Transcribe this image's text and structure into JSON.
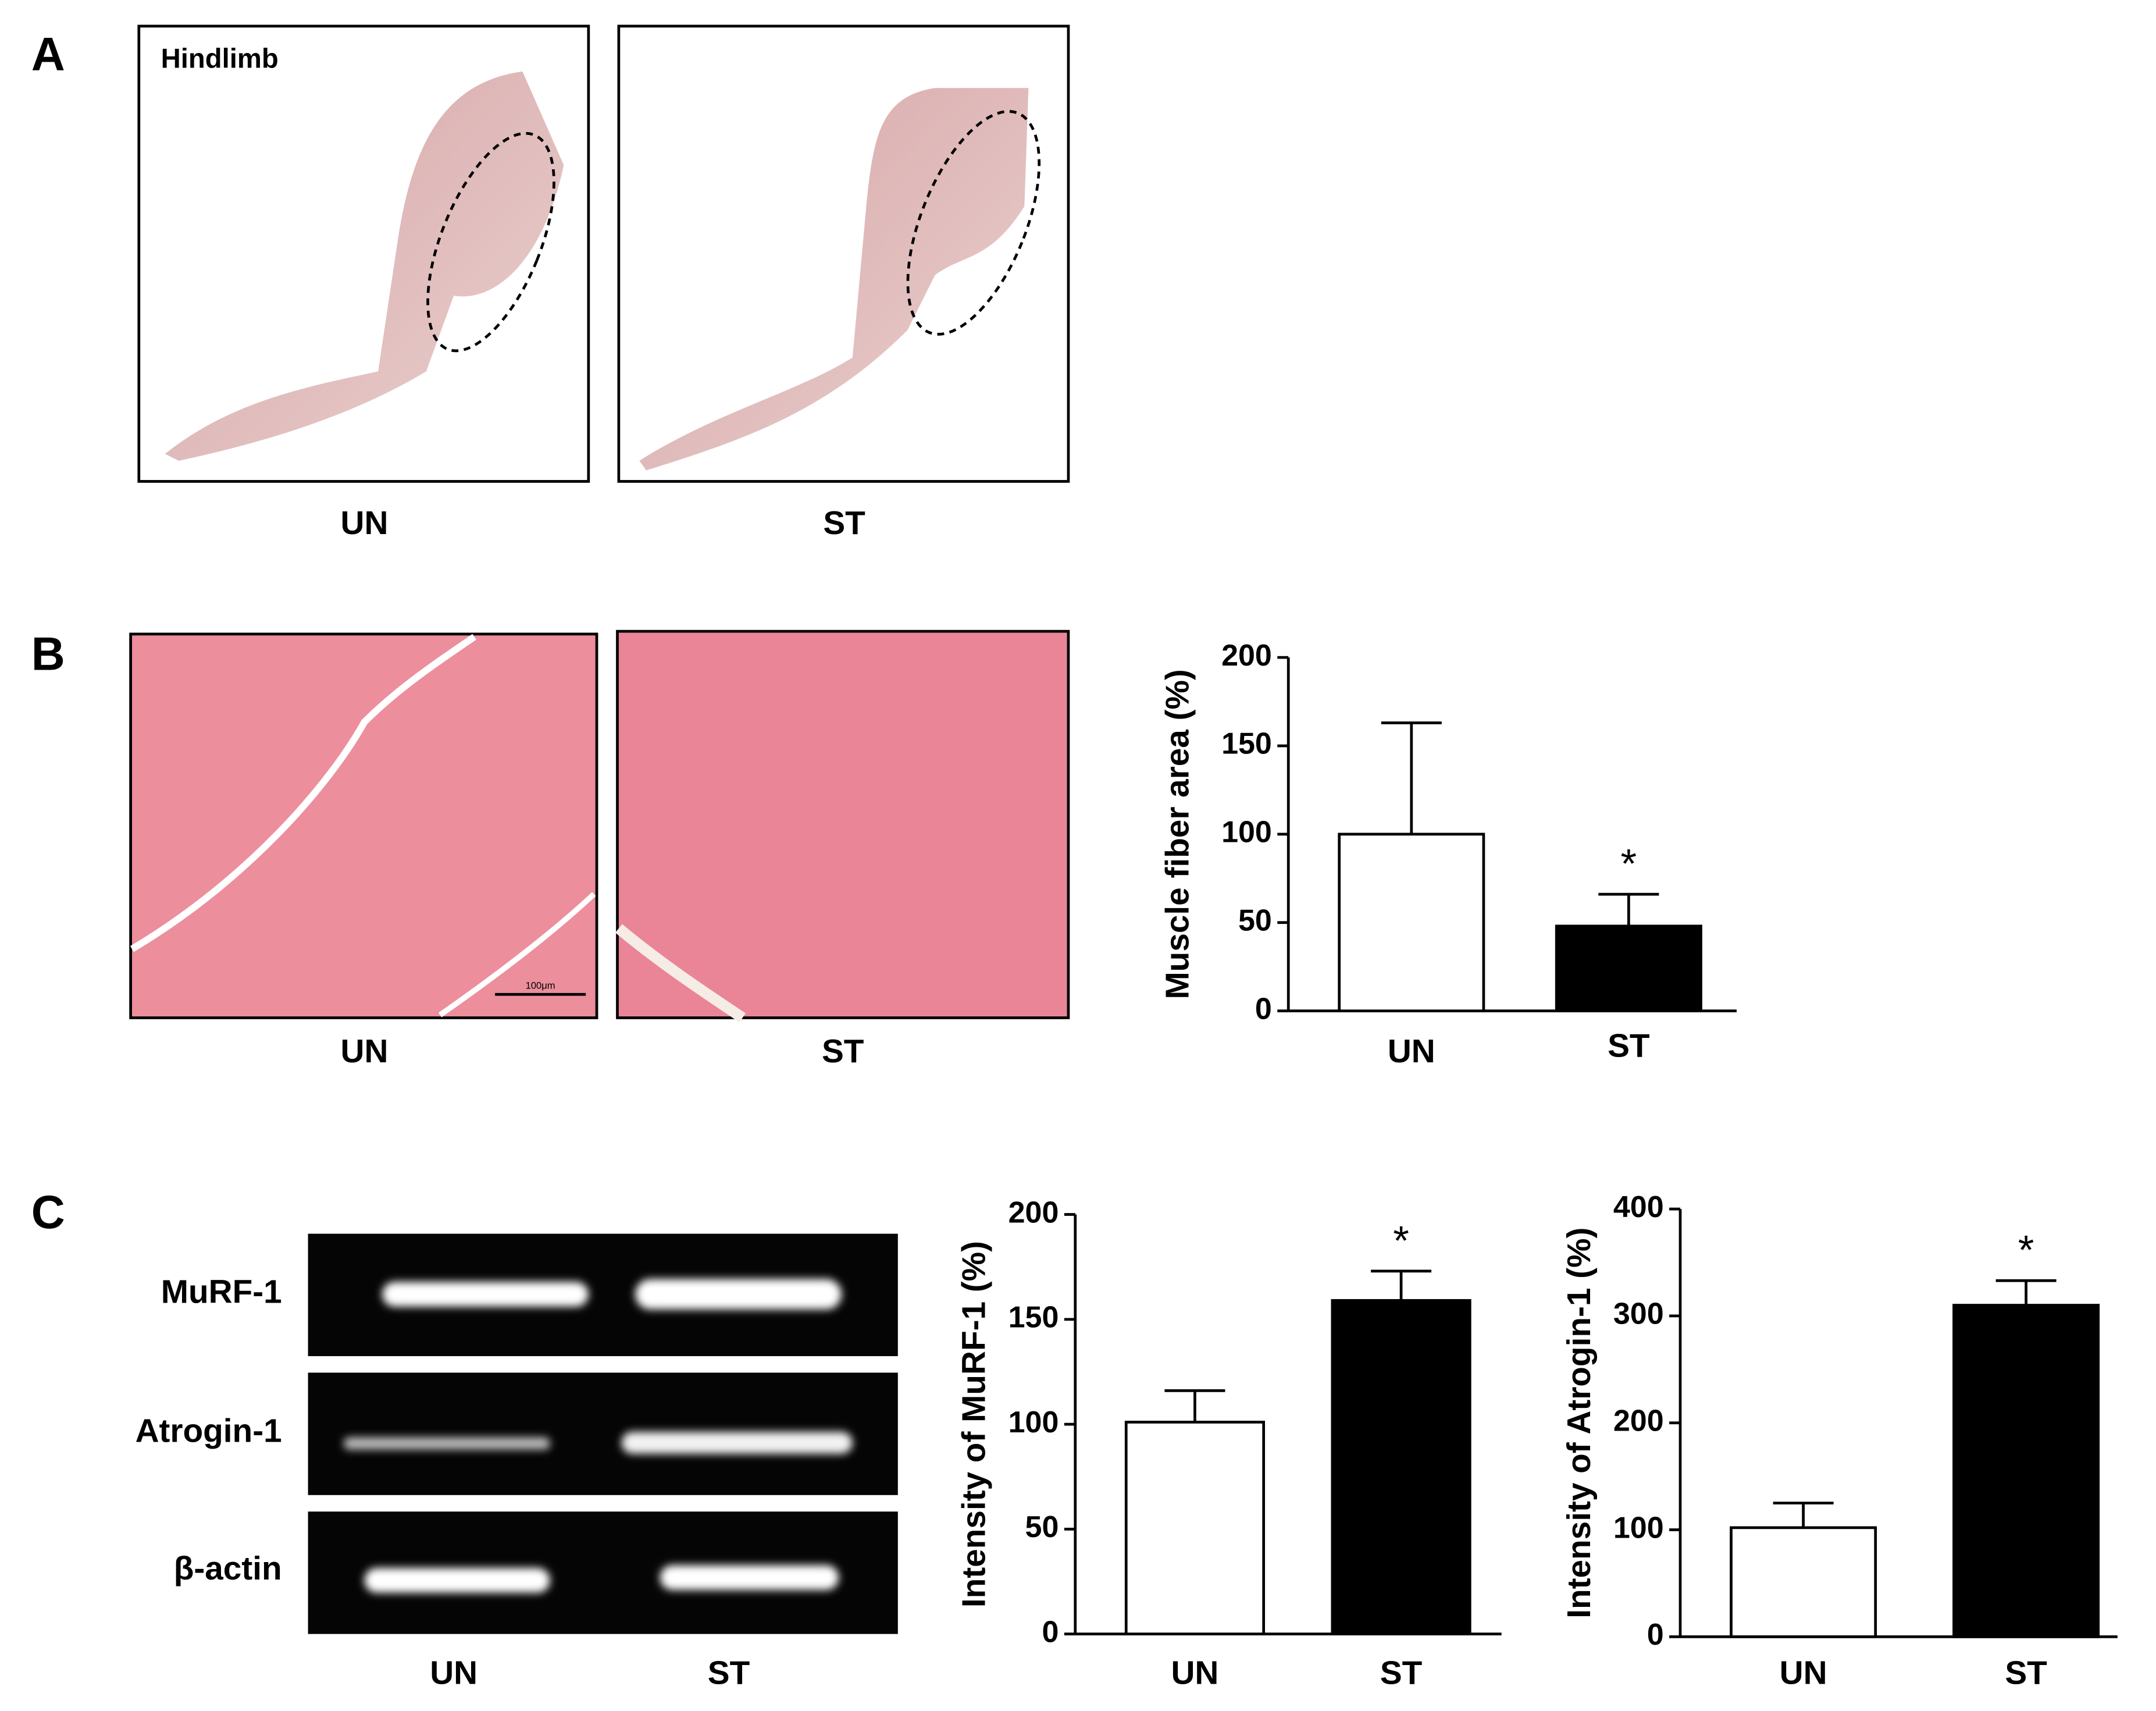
{
  "panels": {
    "A": {
      "label": "A",
      "inset": "Hindlimb",
      "groups": [
        "UN",
        "ST"
      ]
    },
    "B": {
      "label": "B",
      "scale_bar": "100μm",
      "groups": [
        "UN",
        "ST"
      ]
    },
    "C": {
      "label": "C",
      "genes": [
        "MuRF-1",
        "Atrogin-1",
        "β-actin"
      ],
      "groups": [
        "UN",
        "ST"
      ]
    }
  },
  "chart_data": [
    {
      "type": "bar",
      "ylabel": "Muscle fiber area (%)",
      "categories": [
        "UN",
        "ST"
      ],
      "values": [
        100,
        48
      ],
      "errors": [
        63,
        18
      ],
      "colors": [
        "#ffffff",
        "#000000"
      ],
      "significance": [
        null,
        "*"
      ],
      "ylim": [
        0,
        200
      ],
      "yticks": [
        0,
        50,
        100,
        150,
        200
      ]
    },
    {
      "type": "bar",
      "ylabel": "Intensity of MuRF-1 (%)",
      "categories": [
        "UN",
        "ST"
      ],
      "values": [
        101,
        159
      ],
      "errors": [
        15,
        14
      ],
      "colors": [
        "#ffffff",
        "#000000"
      ],
      "significance": [
        null,
        "*"
      ],
      "ylim": [
        0,
        200
      ],
      "yticks": [
        0,
        50,
        100,
        150,
        200
      ]
    },
    {
      "type": "bar",
      "ylabel": "Intensity of Atrogin-1 (%)",
      "categories": [
        "UN",
        "ST"
      ],
      "values": [
        102,
        310
      ],
      "errors": [
        23,
        23
      ],
      "colors": [
        "#ffffff",
        "#000000"
      ],
      "significance": [
        null,
        "*"
      ],
      "ylim": [
        0,
        400
      ],
      "yticks": [
        0,
        100,
        200,
        300,
        400
      ]
    }
  ]
}
